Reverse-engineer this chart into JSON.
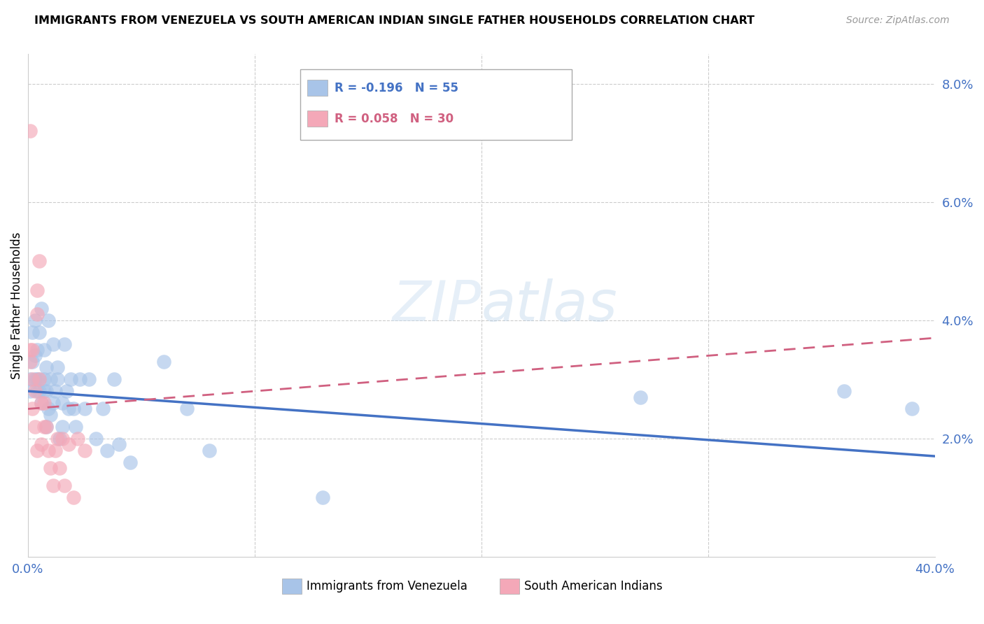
{
  "title": "IMMIGRANTS FROM VENEZUELA VS SOUTH AMERICAN INDIAN SINGLE FATHER HOUSEHOLDS CORRELATION CHART",
  "source": "Source: ZipAtlas.com",
  "ylabel": "Single Father Households",
  "xlim": [
    0.0,
    0.4
  ],
  "ylim": [
    0.0,
    0.085
  ],
  "xticks": [
    0.0,
    0.1,
    0.2,
    0.3,
    0.4
  ],
  "xticklabels": [
    "0.0%",
    "",
    "",
    "",
    "40.0%"
  ],
  "yticks_right": [
    0.0,
    0.02,
    0.04,
    0.06,
    0.08
  ],
  "yticklabels_right": [
    "",
    "2.0%",
    "4.0%",
    "6.0%",
    "8.0%"
  ],
  "legend1_color": "#a8c4e8",
  "legend2_color": "#f4a8b8",
  "trendline1_color": "#4472c4",
  "trendline2_color": "#d06080",
  "blue_trend_start": 0.028,
  "blue_trend_end": 0.017,
  "pink_trend_start": 0.025,
  "pink_trend_end": 0.037,
  "blue_points_x": [
    0.001,
    0.001,
    0.002,
    0.002,
    0.003,
    0.003,
    0.003,
    0.004,
    0.004,
    0.004,
    0.005,
    0.005,
    0.005,
    0.006,
    0.006,
    0.007,
    0.007,
    0.007,
    0.008,
    0.008,
    0.008,
    0.009,
    0.009,
    0.01,
    0.01,
    0.011,
    0.011,
    0.012,
    0.013,
    0.013,
    0.014,
    0.015,
    0.015,
    0.016,
    0.017,
    0.018,
    0.019,
    0.02,
    0.021,
    0.023,
    0.025,
    0.027,
    0.03,
    0.033,
    0.035,
    0.038,
    0.04,
    0.045,
    0.06,
    0.07,
    0.08,
    0.13,
    0.27,
    0.36,
    0.39
  ],
  "blue_points_y": [
    0.03,
    0.028,
    0.033,
    0.038,
    0.03,
    0.034,
    0.04,
    0.03,
    0.035,
    0.028,
    0.038,
    0.03,
    0.028,
    0.042,
    0.026,
    0.035,
    0.03,
    0.028,
    0.032,
    0.028,
    0.022,
    0.04,
    0.025,
    0.03,
    0.024,
    0.036,
    0.026,
    0.028,
    0.032,
    0.03,
    0.02,
    0.026,
    0.022,
    0.036,
    0.028,
    0.025,
    0.03,
    0.025,
    0.022,
    0.03,
    0.025,
    0.03,
    0.02,
    0.025,
    0.018,
    0.03,
    0.019,
    0.016,
    0.033,
    0.025,
    0.018,
    0.01,
    0.027,
    0.028,
    0.025
  ],
  "pink_points_x": [
    0.001,
    0.001,
    0.001,
    0.002,
    0.002,
    0.002,
    0.003,
    0.003,
    0.004,
    0.004,
    0.004,
    0.005,
    0.005,
    0.006,
    0.006,
    0.007,
    0.007,
    0.008,
    0.009,
    0.01,
    0.011,
    0.012,
    0.013,
    0.014,
    0.015,
    0.016,
    0.018,
    0.02,
    0.022,
    0.025
  ],
  "pink_points_y": [
    0.072,
    0.035,
    0.033,
    0.035,
    0.03,
    0.025,
    0.028,
    0.022,
    0.041,
    0.045,
    0.018,
    0.05,
    0.03,
    0.026,
    0.019,
    0.026,
    0.022,
    0.022,
    0.018,
    0.015,
    0.012,
    0.018,
    0.02,
    0.015,
    0.02,
    0.012,
    0.019,
    0.01,
    0.02,
    0.018
  ]
}
